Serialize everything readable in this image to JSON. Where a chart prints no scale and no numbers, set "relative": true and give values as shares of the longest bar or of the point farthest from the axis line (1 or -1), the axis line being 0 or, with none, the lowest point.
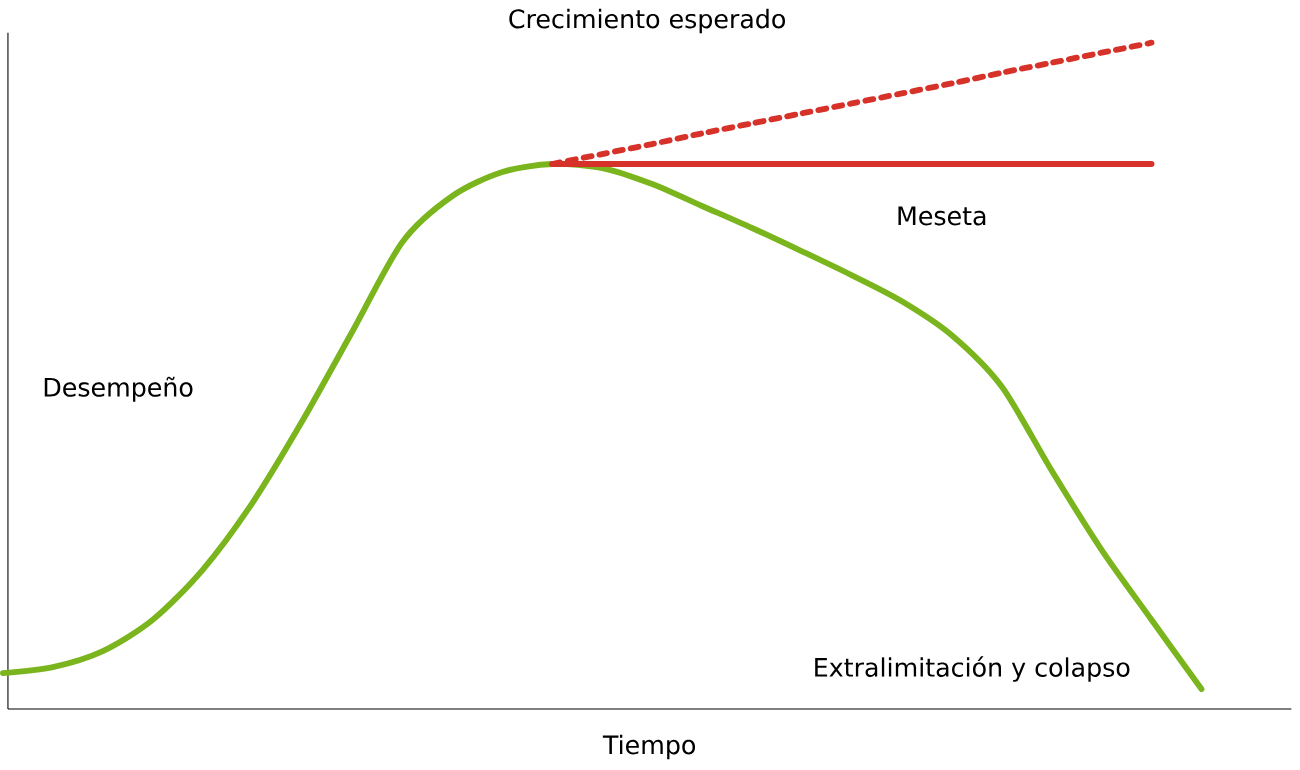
{
  "chart_data": {
    "type": "line",
    "relative": true,
    "xlabel": "Tiempo",
    "ylabel": "Desempeño",
    "categories": [
      null,
      null,
      null,
      null,
      null,
      null,
      null,
      null,
      null,
      null,
      null,
      null,
      null,
      null,
      null,
      null,
      null,
      null,
      null,
      null,
      null,
      null,
      null,
      null,
      null
    ],
    "series": [
      {
        "color": "#7ab51d",
        "line_style": "solid",
        "values": [
          0.054,
          0.063,
          0.087,
          0.134,
          0.209,
          0.31,
          0.433,
          0.567,
          0.701,
          0.77,
          0.806,
          0.818,
          0.812,
          0.788,
          0.755,
          0.722,
          0.687,
          0.651,
          0.612,
          0.561,
          0.484,
          0.358,
          0.239,
          0.134,
          0.03
        ]
      },
      {
        "color": "#d7322a",
        "line_style": "solid",
        "values": [
          null,
          null,
          null,
          null,
          null,
          null,
          null,
          null,
          null,
          null,
          null,
          0.818,
          0.818,
          0.818,
          0.818,
          0.818,
          0.818,
          0.818,
          0.818,
          0.818,
          0.818,
          0.818,
          0.818,
          0.818,
          null
        ]
      },
      {
        "color": "#d7322a",
        "line_style": "dashed",
        "values": [
          null,
          null,
          null,
          null,
          null,
          null,
          null,
          null,
          null,
          null,
          null,
          0.818,
          0.833,
          0.848,
          0.864,
          0.879,
          0.894,
          0.909,
          0.924,
          0.939,
          0.955,
          0.97,
          0.985,
          1.0,
          null
        ]
      }
    ],
    "annotations": [
      "Crecimiento esperado",
      "Meseta",
      "Extralimitación y colapso"
    ]
  }
}
